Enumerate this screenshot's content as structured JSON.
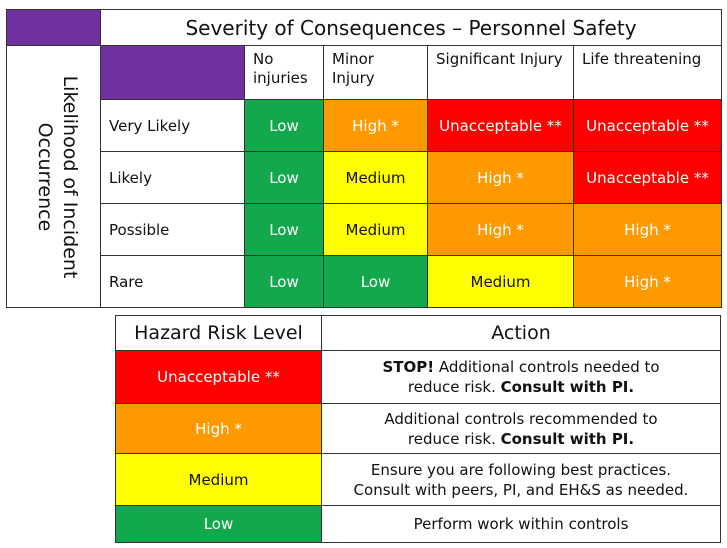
{
  "matrix": {
    "title": "Severity of Consequences – Personnel Safety",
    "likelihood_label_line1": "Likelihood of Incident",
    "likelihood_label_line2": "Occurrence",
    "severity_headers": [
      "No injuries",
      "Minor Injury",
      "Significant Injury",
      "Life threatening"
    ],
    "rows": [
      {
        "label": "Very Likely",
        "cells": [
          "Low",
          "High *",
          "Unacceptable **",
          "Unacceptable **"
        ]
      },
      {
        "label": "Likely",
        "cells": [
          "Low",
          "Medium",
          "High *",
          "Unacceptable **"
        ]
      },
      {
        "label": "Possible",
        "cells": [
          "Low",
          "Medium",
          "High *",
          "High *"
        ]
      },
      {
        "label": "Rare",
        "cells": [
          "Low",
          "Low",
          "Medium",
          "High *"
        ]
      }
    ],
    "colors": {
      "purple": "#7030a0",
      "red": "#ff0000",
      "orange": "#ff9900",
      "yellow": "#ffff00",
      "green": "#14a84c"
    }
  },
  "legend": {
    "header_level": "Hazard Risk Level",
    "header_action": "Action",
    "rows": [
      {
        "level": "Unacceptable **",
        "action_bold1": "STOP!",
        "action_text1": " Additional controls needed to",
        "action_text2": "reduce risk. ",
        "action_bold2": "Consult with PI."
      },
      {
        "level": "High *",
        "action_bold1": "",
        "action_text1": "Additional controls recommended to",
        "action_text2": "reduce risk. ",
        "action_bold2": "Consult with PI."
      },
      {
        "level": "Medium",
        "action_bold1": "",
        "action_text1": "Ensure you are following best practices.",
        "action_text2": "Consult with peers, PI, and EH&S as needed.",
        "action_bold2": ""
      },
      {
        "level": "Low",
        "action_bold1": "",
        "action_text1": "Perform work within controls",
        "action_text2": "",
        "action_bold2": ""
      }
    ]
  }
}
